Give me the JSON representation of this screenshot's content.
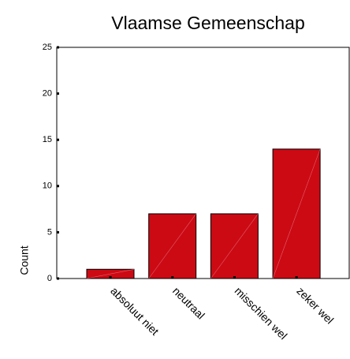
{
  "chart_data": {
    "type": "bar",
    "title": "Vlaamse Gemeenschap",
    "ylabel": "Count",
    "categories": [
      "absoluut niet",
      "neutraal",
      "misschien wel",
      "zeker wel"
    ],
    "values": [
      1,
      7,
      7,
      14
    ],
    "color": "#cc0a14",
    "ylim": [
      0,
      25
    ],
    "yticks": [
      0,
      5,
      10,
      15,
      20,
      25
    ],
    "grid": false
  }
}
